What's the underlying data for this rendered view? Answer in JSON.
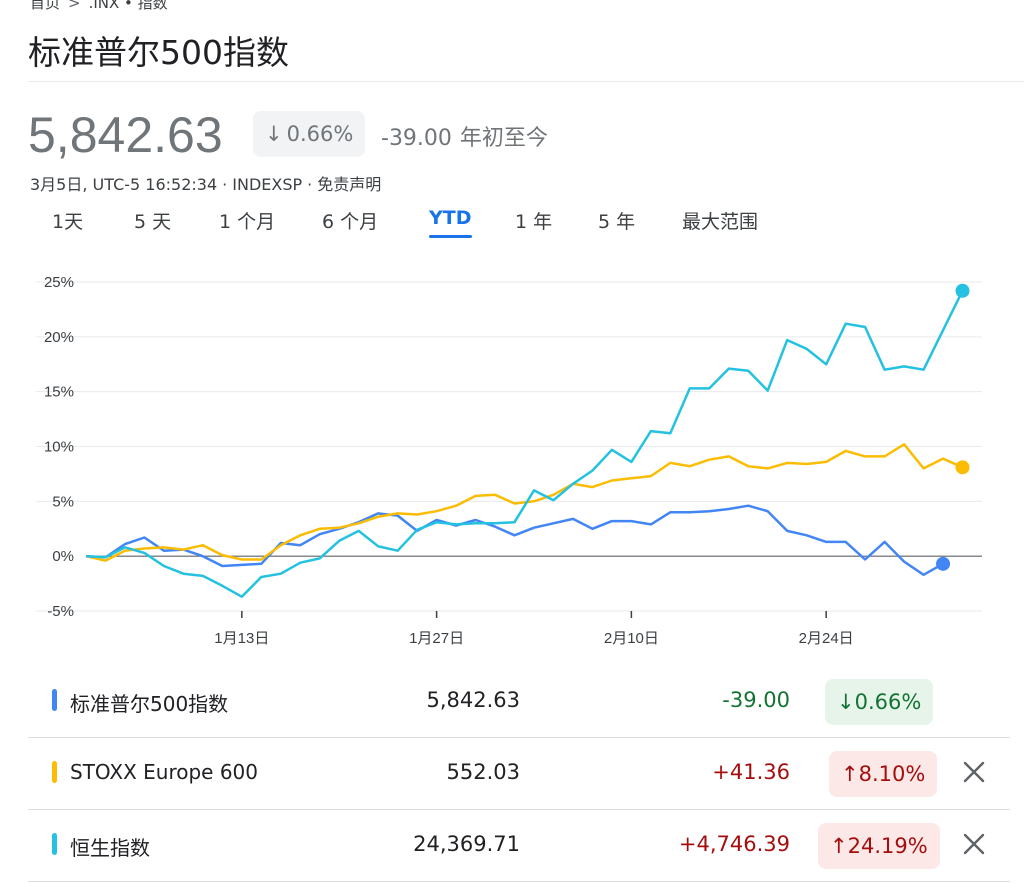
{
  "breadcrumb": {
    "home": "首页",
    "sep": ">",
    "current": ".INX • 指数"
  },
  "title": "标准普尔500指数",
  "quote": {
    "price": "5,842.63",
    "change_arrow": "↓",
    "change_pct": "0.66%",
    "change_abs": "-39.00",
    "change_period": "年初至今",
    "meta_time": "3月5日, UTC-5 16:52:34",
    "meta_exchange": "INDEXSP",
    "meta_disclaimer": "免责声明",
    "meta_sep": "·"
  },
  "tabs": [
    "1天",
    "5 天",
    "1 个月",
    "6 个月",
    "YTD",
    "1 年",
    "5 年",
    "最大范围"
  ],
  "active_tab": "YTD",
  "colors": {
    "sp500": "#4285f4",
    "stoxx": "#fbbc04",
    "hsi": "#24c1e0",
    "zero_line": "#5f6368",
    "grid": "#e8eaed"
  },
  "chart_data": {
    "type": "line",
    "title": "",
    "xlabel": "",
    "ylabel": "",
    "ylim": [
      -5,
      25
    ],
    "yticks": [
      -5,
      0,
      5,
      10,
      15,
      20,
      25
    ],
    "ytick_labels": [
      "-5%",
      "0%",
      "5%",
      "10%",
      "15%",
      "20%",
      "25%"
    ],
    "xticks": [
      {
        "label": "1月13日",
        "index": 8
      },
      {
        "label": "1月27日",
        "index": 18
      },
      {
        "label": "2月10日",
        "index": 28
      },
      {
        "label": "2月24日",
        "index": 38
      }
    ],
    "grid": true,
    "x_count": 47,
    "series": [
      {
        "name": "标准普尔500指数",
        "color": "#4285f4",
        "values": [
          0,
          -0.1,
          1.1,
          1.7,
          0.5,
          0.6,
          0.0,
          -0.9,
          -0.8,
          -0.7,
          1.2,
          1.0,
          2.0,
          2.5,
          3.1,
          3.9,
          3.7,
          2.3,
          3.3,
          2.8,
          3.3,
          2.7,
          1.9,
          2.6,
          3.0,
          3.4,
          2.5,
          3.2,
          3.2,
          2.9,
          4.0,
          4.0,
          4.1,
          4.3,
          4.6,
          4.1,
          2.3,
          1.9,
          1.3,
          1.3,
          -0.3,
          1.3,
          -0.5,
          -1.7,
          -0.7
        ]
      },
      {
        "name": "STOXX Europe 600",
        "color": "#fbbc04",
        "values": [
          0,
          -0.4,
          0.5,
          0.7,
          0.8,
          0.6,
          1.0,
          0.1,
          -0.3,
          -0.3,
          1.0,
          1.9,
          2.5,
          2.6,
          3.0,
          3.6,
          3.9,
          3.8,
          4.1,
          4.6,
          5.5,
          5.6,
          4.8,
          5.0,
          5.6,
          6.6,
          6.3,
          6.9,
          7.1,
          7.3,
          8.5,
          8.2,
          8.8,
          9.1,
          8.2,
          8.0,
          8.5,
          8.4,
          8.6,
          9.6,
          9.1,
          9.1,
          10.2,
          8.0,
          8.9,
          8.1
        ]
      },
      {
        "name": "恒生指数",
        "color": "#24c1e0",
        "values": [
          0,
          -0.1,
          0.8,
          0.3,
          -0.9,
          -1.6,
          -1.8,
          -2.7,
          -3.7,
          -1.9,
          -1.6,
          -0.6,
          -0.2,
          1.4,
          2.3,
          0.9,
          0.5,
          2.4,
          3.1,
          2.9,
          3.0,
          3.0,
          3.1,
          6.0,
          5.1,
          6.6,
          7.8,
          9.7,
          8.6,
          11.4,
          11.2,
          15.3,
          15.3,
          17.1,
          16.9,
          15.1,
          19.7,
          18.9,
          17.5,
          21.2,
          20.9,
          17.0,
          17.3,
          17.0,
          20.6,
          24.2
        ]
      }
    ]
  },
  "rows": [
    {
      "name": "标准普尔500指数",
      "value": "5,842.63",
      "delta": "-39.00",
      "arrow": "↓",
      "pct": "0.66%",
      "dir": "down",
      "removable": false
    },
    {
      "name": "STOXX Europe 600",
      "value": "552.03",
      "delta": "+41.36",
      "arrow": "↑",
      "pct": "8.10%",
      "dir": "up",
      "removable": true
    },
    {
      "name": "恒生指数",
      "value": "24,369.71",
      "delta": "+4,746.39",
      "arrow": "↑",
      "pct": "24.19%",
      "dir": "up",
      "removable": true
    }
  ]
}
